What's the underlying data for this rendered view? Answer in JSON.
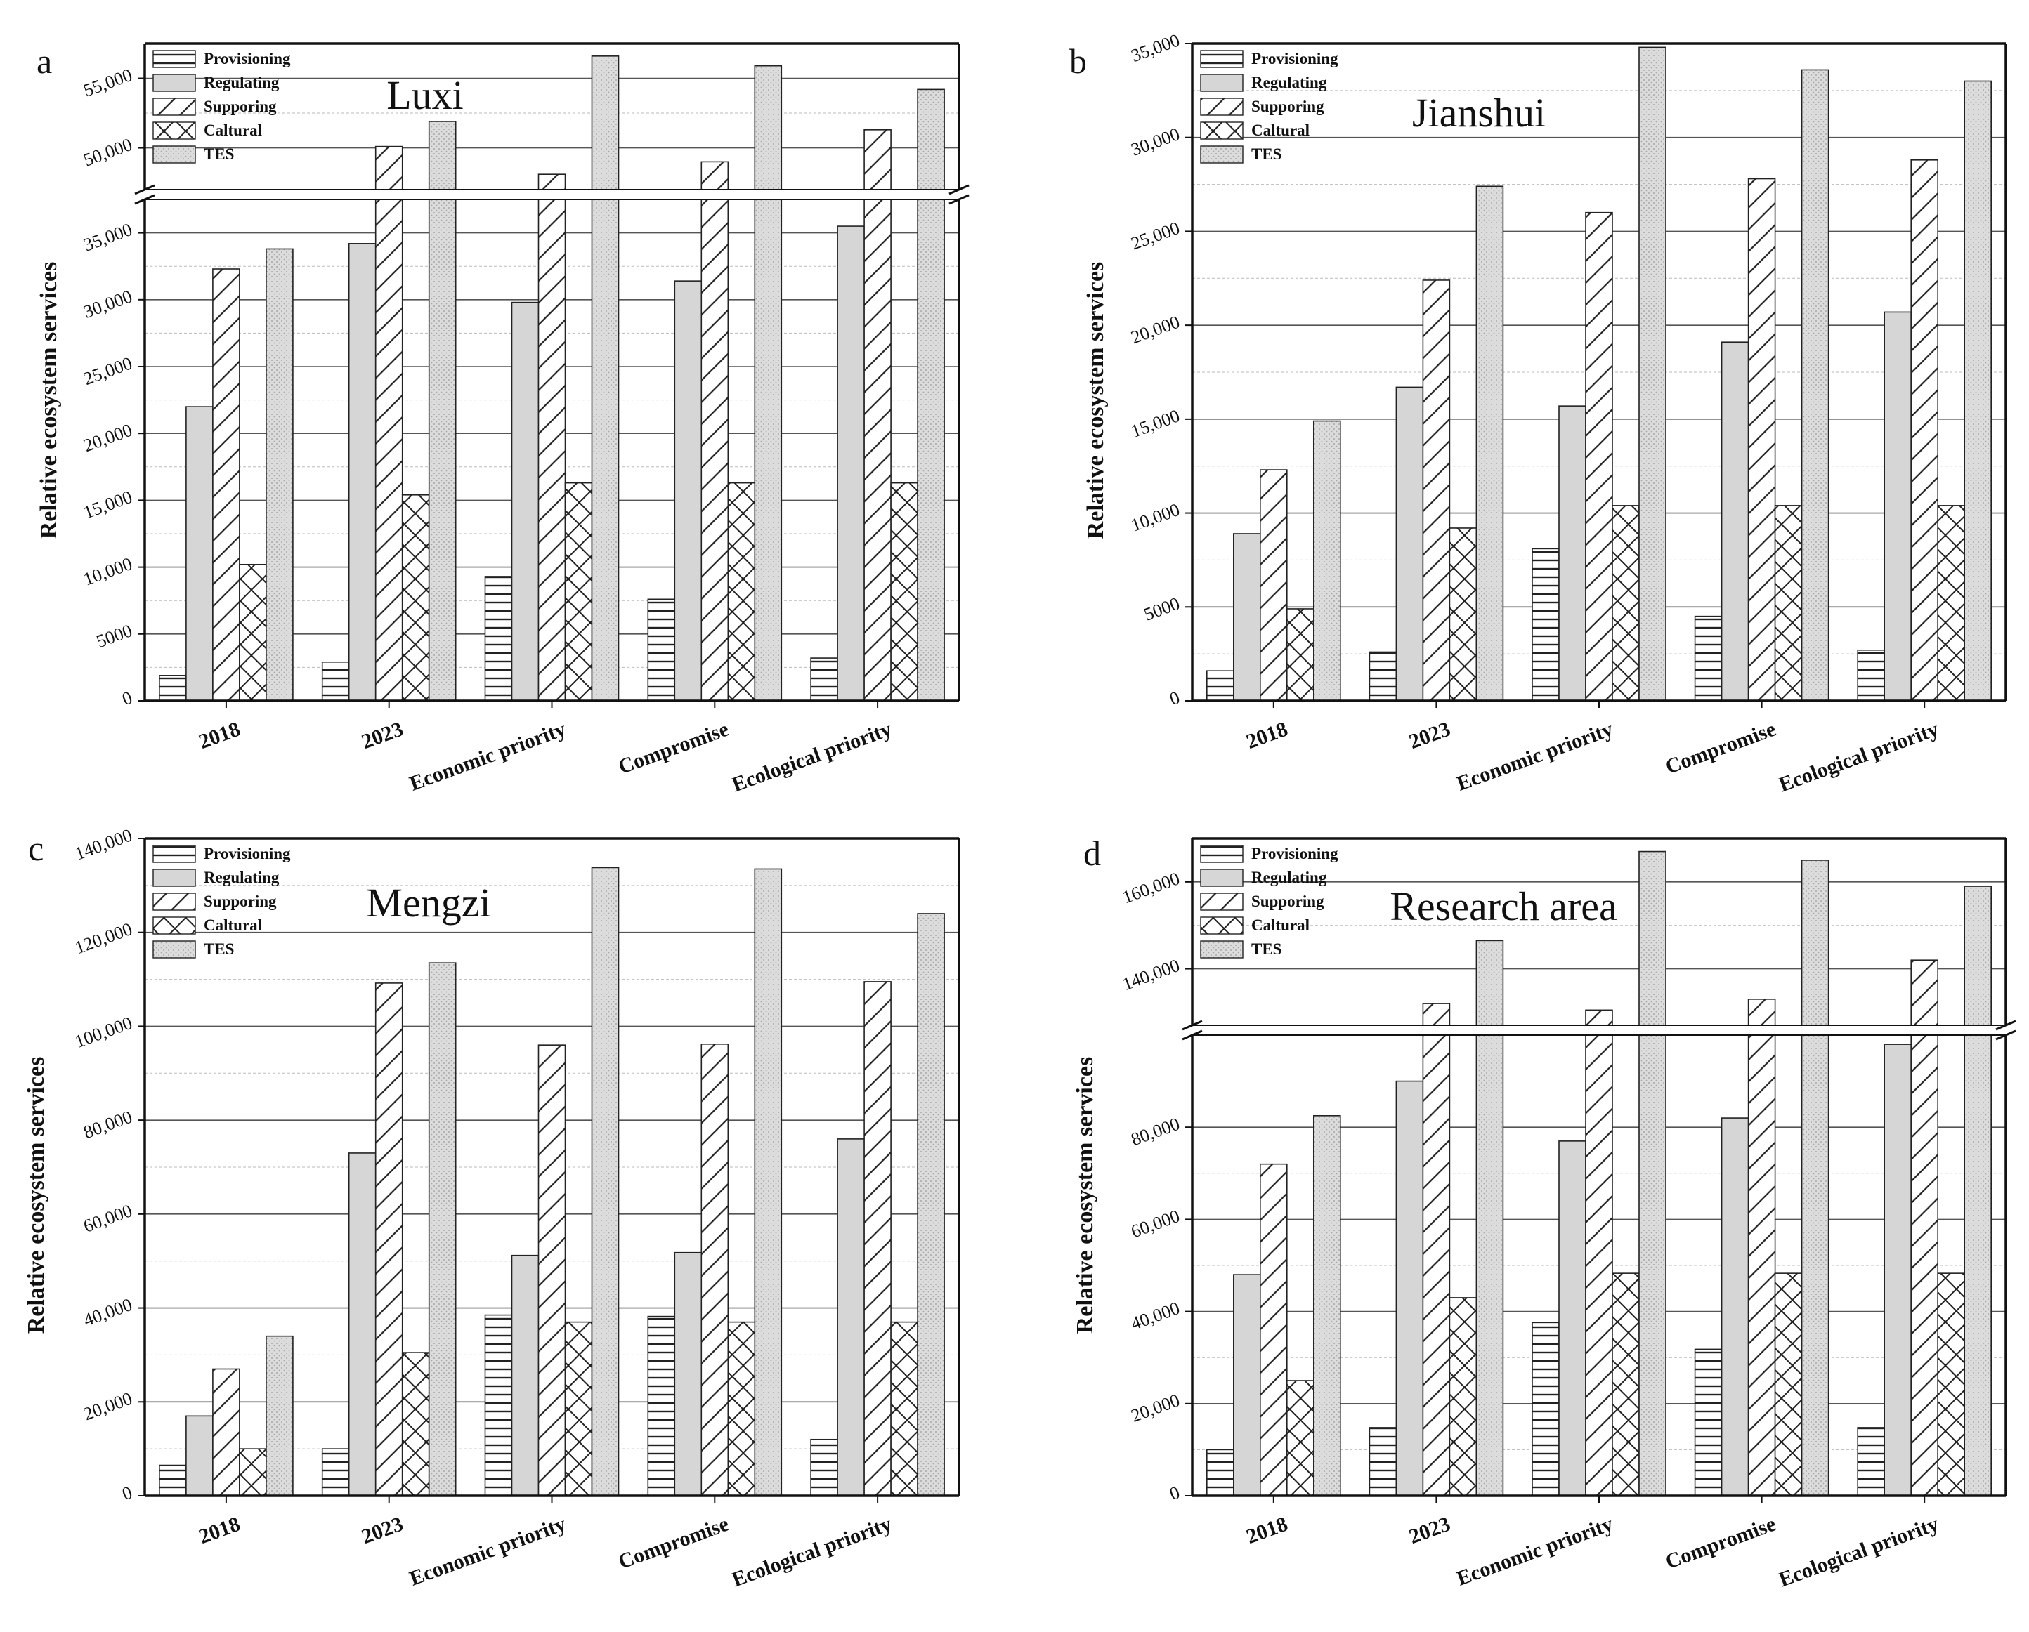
{
  "figure": {
    "series_names": [
      "Provisioning",
      "Regulating",
      "Supporing",
      "Caltural",
      "TES"
    ],
    "categories": [
      "2018",
      "2023",
      "Economic priority",
      "Compromise",
      "Ecological priority"
    ],
    "ylabel": "Relative ecosystem services"
  },
  "chart_data": [
    {
      "type": "bar",
      "panel": "a",
      "title": "Luxi",
      "ylabel": "Relative ecosystem services",
      "categories": [
        "2018",
        "2023",
        "Economic priority",
        "Compromise",
        "Ecological priority"
      ],
      "series": [
        {
          "name": "Provisioning",
          "values": [
            1900,
            2900,
            9300,
            7600,
            3200
          ]
        },
        {
          "name": "Regulating",
          "values": [
            22000,
            34200,
            29800,
            31400,
            35500
          ]
        },
        {
          "name": "Supporing",
          "values": [
            32300,
            50100,
            48100,
            49000,
            51300
          ]
        },
        {
          "name": "Caltural",
          "values": [
            10200,
            15400,
            16300,
            16300,
            16300
          ]
        },
        {
          "name": "TES",
          "values": [
            33800,
            51900,
            56600,
            55900,
            54200
          ]
        }
      ],
      "yaxis_break": {
        "lower": [
          0,
          37500
        ],
        "upper": [
          47000,
          57500
        ]
      },
      "yticks": [
        {
          "value": 0,
          "label": "0"
        },
        {
          "value": 5000,
          "label": "5000"
        },
        {
          "value": 10000,
          "label": "10,000"
        },
        {
          "value": 15000,
          "label": "15,000"
        },
        {
          "value": 20000,
          "label": "20,000"
        },
        {
          "value": 25000,
          "label": "25,000"
        },
        {
          "value": 30000,
          "label": "30,000"
        },
        {
          "value": 35000,
          "label": "35,000"
        },
        {
          "value": 50000,
          "label": "50,000"
        },
        {
          "value": 55000,
          "label": "55,000"
        }
      ]
    },
    {
      "type": "bar",
      "panel": "b",
      "title": "Jianshui",
      "ylabel": "Relative ecosystem services",
      "categories": [
        "2018",
        "2023",
        "Economic priority",
        "Compromise",
        "Ecological priority"
      ],
      "series": [
        {
          "name": "Provisioning",
          "values": [
            1600,
            2600,
            8100,
            4500,
            2700
          ]
        },
        {
          "name": "Regulating",
          "values": [
            8900,
            16700,
            15700,
            19100,
            20700
          ]
        },
        {
          "name": "Supporing",
          "values": [
            12300,
            22400,
            26000,
            27800,
            28800
          ]
        },
        {
          "name": "Caltural",
          "values": [
            4900,
            9200,
            10400,
            10400,
            10400
          ]
        },
        {
          "name": "TES",
          "values": [
            14900,
            27400,
            34800,
            33600,
            33000
          ]
        }
      ],
      "ylim": [
        0,
        35000
      ],
      "yticks": [
        {
          "value": 0,
          "label": "0"
        },
        {
          "value": 5000,
          "label": "5000"
        },
        {
          "value": 10000,
          "label": "10,000"
        },
        {
          "value": 15000,
          "label": "15,000"
        },
        {
          "value": 20000,
          "label": "20,000"
        },
        {
          "value": 25000,
          "label": "25,000"
        },
        {
          "value": 30000,
          "label": "30,000"
        },
        {
          "value": 35000,
          "label": "35,000"
        }
      ]
    },
    {
      "type": "bar",
      "panel": "c",
      "title": "Mengzi",
      "ylabel": "Relative ecosystem services",
      "categories": [
        "2018",
        "2023",
        "Economic priority",
        "Compromise",
        "Ecological priority"
      ],
      "series": [
        {
          "name": "Provisioning",
          "values": [
            6500,
            10000,
            38500,
            38200,
            12000
          ]
        },
        {
          "name": "Regulating",
          "values": [
            17000,
            73000,
            51200,
            51800,
            76000
          ]
        },
        {
          "name": "Supporing",
          "values": [
            27000,
            109200,
            96000,
            96200,
            109500
          ]
        },
        {
          "name": "Caltural",
          "values": [
            10000,
            30500,
            37000,
            37000,
            37000
          ]
        },
        {
          "name": "TES",
          "values": [
            34000,
            113500,
            133800,
            133500,
            124000
          ]
        }
      ],
      "ylim": [
        0,
        140000
      ],
      "yticks": [
        {
          "value": 0,
          "label": "0"
        },
        {
          "value": 20000,
          "label": "20,000"
        },
        {
          "value": 40000,
          "label": "40,000"
        },
        {
          "value": 60000,
          "label": "60,000"
        },
        {
          "value": 80000,
          "label": "80,000"
        },
        {
          "value": 100000,
          "label": "100,000"
        },
        {
          "value": 120000,
          "label": "120,000"
        },
        {
          "value": 140000,
          "label": "140,000"
        }
      ]
    },
    {
      "type": "bar",
      "panel": "d",
      "title": "Research area",
      "ylabel": "Relative ecosystem services",
      "categories": [
        "2018",
        "2023",
        "Economic priority",
        "Compromise",
        "Ecological priority"
      ],
      "series": [
        {
          "name": "Provisioning",
          "values": [
            10000,
            14800,
            37600,
            31800,
            14800
          ]
        },
        {
          "name": "Regulating",
          "values": [
            48000,
            90000,
            77000,
            82000,
            98000
          ]
        },
        {
          "name": "Supporing",
          "values": [
            72000,
            132000,
            130500,
            133000,
            142000
          ]
        },
        {
          "name": "Caltural",
          "values": [
            25000,
            43000,
            48300,
            48300,
            48300
          ]
        },
        {
          "name": "TES",
          "values": [
            82500,
            146500,
            167000,
            165000,
            159000
          ]
        }
      ],
      "yaxis_break": {
        "lower": [
          0,
          100000
        ],
        "upper": [
          127000,
          170000
        ]
      },
      "yticks": [
        {
          "value": 0,
          "label": "0"
        },
        {
          "value": 20000,
          "label": "20,000"
        },
        {
          "value": 40000,
          "label": "40,000"
        },
        {
          "value": 60000,
          "label": "60,000"
        },
        {
          "value": 80000,
          "label": "80,000"
        },
        {
          "value": 140000,
          "label": "140,000"
        },
        {
          "value": 160000,
          "label": "160,000"
        }
      ]
    }
  ]
}
